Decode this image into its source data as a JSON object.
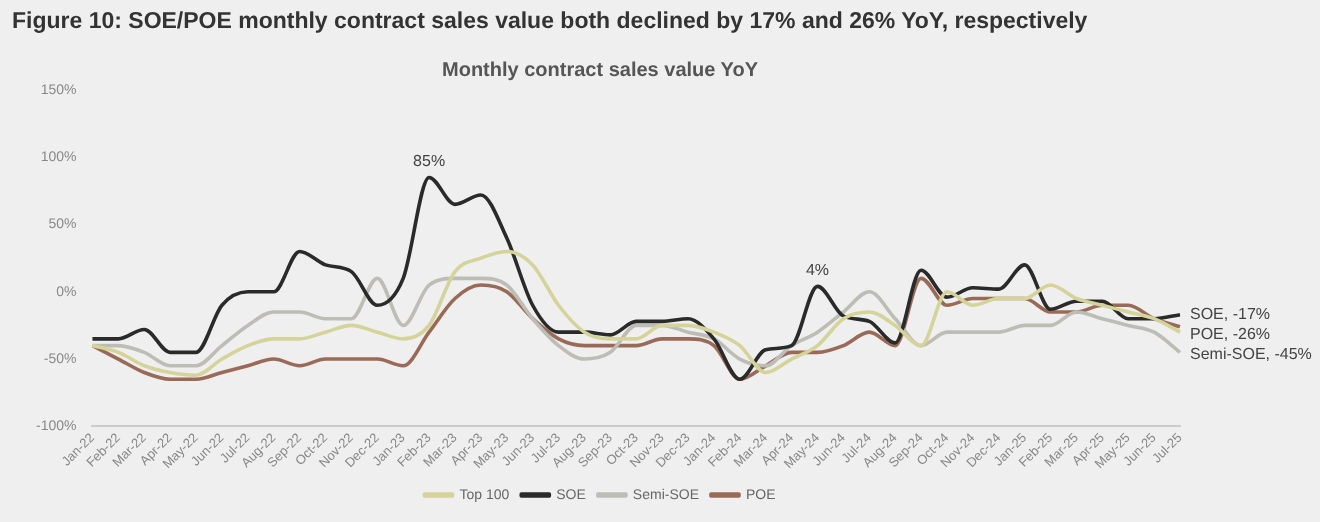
{
  "chart_data": {
    "type": "line",
    "title": "Figure 10: SOE/POE monthly contract sales value both declined by 17% and 26% YoY, respectively",
    "subtitle": "Monthly contract sales value YoY",
    "categories": [
      "Jan-22",
      "Feb-22",
      "Mar-22",
      "Apr-22",
      "May-22",
      "Jun-22",
      "Jul-22",
      "Aug-22",
      "Sep-22",
      "Oct-22",
      "Nov-22",
      "Dec-22",
      "Jan-23",
      "Feb-23",
      "Mar-23",
      "Apr-23",
      "May-23",
      "Jun-23",
      "Jul-23",
      "Aug-23",
      "Sep-23",
      "Oct-23",
      "Nov-23",
      "Dec-23",
      "Jan-24",
      "Feb-24",
      "Mar-24",
      "Apr-24",
      "May-24",
      "Jun-24",
      "Jul-24",
      "Aug-24",
      "Sep-24",
      "Oct-24",
      "Nov-24",
      "Dec-24",
      "Jan-25",
      "Feb-25",
      "Mar-25",
      "Apr-25",
      "May-25",
      "Jun-25",
      "Jul-25"
    ],
    "series": [
      {
        "name": "Top 100",
        "color": "#d4d49a",
        "values": [
          -40,
          -45,
          -55,
          -60,
          -62,
          -50,
          -40,
          -35,
          -35,
          -30,
          -25,
          -30,
          -35,
          -25,
          15,
          25,
          30,
          20,
          -10,
          -30,
          -35,
          -35,
          -25,
          -25,
          -30,
          -40,
          -60,
          -50,
          -40,
          -20,
          -15,
          -25,
          -40,
          0,
          -10,
          -5,
          -5,
          5,
          -5,
          -10,
          -15,
          -20,
          -30
        ]
      },
      {
        "name": "SOE",
        "color": "#2a2a2a",
        "values": [
          -35,
          -35,
          -28,
          -45,
          -45,
          -10,
          0,
          0,
          30,
          20,
          15,
          -10,
          10,
          85,
          65,
          72,
          40,
          -10,
          -30,
          -30,
          -32,
          -22,
          -22,
          -20,
          -35,
          -65,
          -43,
          -40,
          4,
          -18,
          -22,
          -38,
          16,
          -4,
          3,
          2,
          20,
          -13,
          -7,
          -7,
          -20,
          -20,
          -17
        ]
      },
      {
        "name": "Semi-SOE",
        "color": "#bdbdb5",
        "values": [
          -40,
          -40,
          -45,
          -55,
          -55,
          -40,
          -25,
          -15,
          -15,
          -20,
          -20,
          10,
          -25,
          5,
          10,
          10,
          5,
          -20,
          -40,
          -50,
          -45,
          -25,
          -25,
          -30,
          -35,
          -50,
          -55,
          -40,
          -30,
          -15,
          0,
          -20,
          -40,
          -30,
          -30,
          -30,
          -25,
          -25,
          -15,
          -20,
          -25,
          -30,
          -45
        ]
      },
      {
        "name": "POE",
        "color": "#9a6a58",
        "values": [
          -40,
          -50,
          -60,
          -65,
          -65,
          -60,
          -55,
          -50,
          -55,
          -50,
          -50,
          -50,
          -55,
          -30,
          -5,
          5,
          0,
          -20,
          -35,
          -40,
          -40,
          -40,
          -35,
          -35,
          -40,
          -65,
          -55,
          -45,
          -45,
          -40,
          -30,
          -40,
          10,
          -10,
          -5,
          -5,
          -5,
          -15,
          -15,
          -10,
          -10,
          -20,
          -26
        ]
      }
    ],
    "ylim": [
      -100,
      150
    ],
    "yticks": [
      {
        "value": -100,
        "label": "-100%"
      },
      {
        "value": -50,
        "label": "-50%"
      },
      {
        "value": 0,
        "label": "0%"
      },
      {
        "value": 50,
        "label": "50%"
      },
      {
        "value": 100,
        "label": "100%"
      },
      {
        "value": 150,
        "label": "150%"
      }
    ],
    "grid": false,
    "legend": "bottom",
    "marker": "none",
    "line_style": "solid",
    "annotations": [
      {
        "text": "85%",
        "x": "Feb-23",
        "y": 85
      },
      {
        "text": "4%",
        "x": "May-24",
        "y": 4
      },
      {
        "text": "SOE, -17%",
        "x": "Jul-25",
        "y": -17
      },
      {
        "text": "POE, -26%",
        "x": "Jul-25",
        "y": -26
      },
      {
        "text": "Semi-SOE, -45%",
        "x": "Jul-25",
        "y": -45
      }
    ]
  }
}
